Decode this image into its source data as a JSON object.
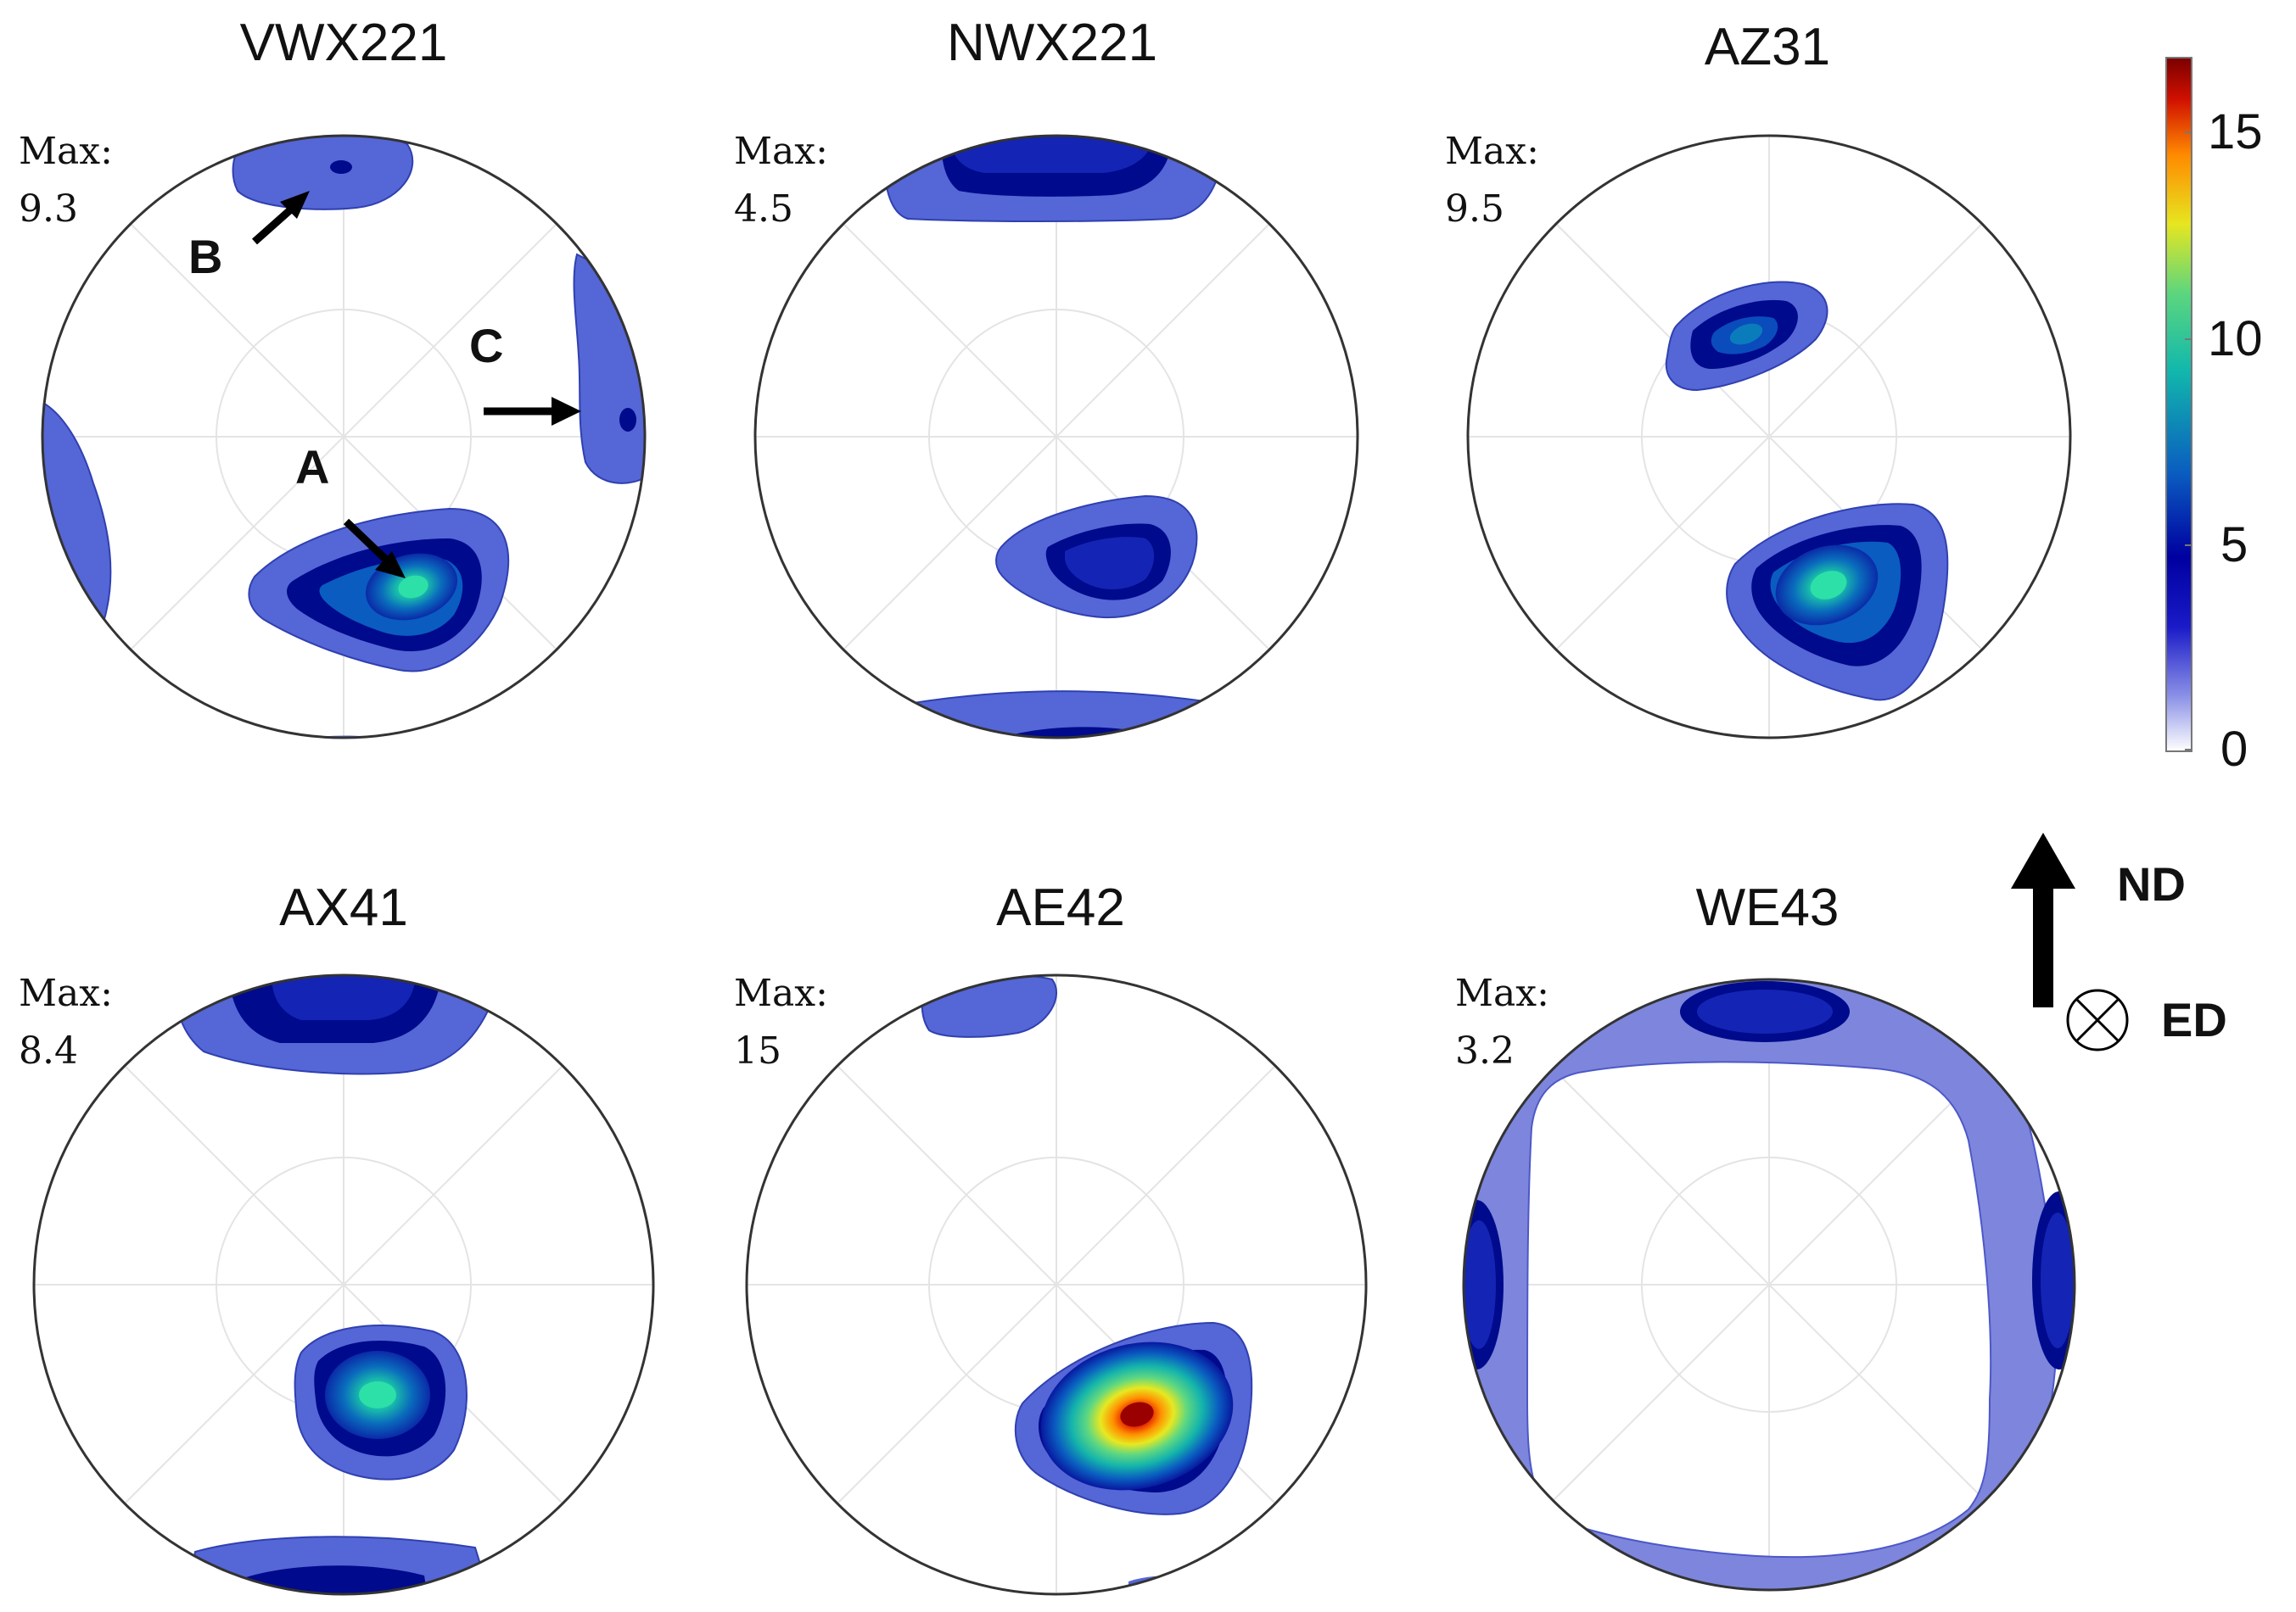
{
  "panels": [
    {
      "title": "VWX221",
      "max_label": "Max:",
      "max_value": "9.3"
    },
    {
      "title": "NWX221",
      "max_label": "Max:",
      "max_value": "4.5"
    },
    {
      "title": "AZ31",
      "max_label": "Max:",
      "max_value": "9.5"
    },
    {
      "title": "AX41",
      "max_label": "Max:",
      "max_value": "8.4"
    },
    {
      "title": "AE42",
      "max_label": "Max:",
      "max_value": "15"
    },
    {
      "title": "WE43",
      "max_label": "Max:",
      "max_value": "3.2"
    }
  ],
  "annotations": {
    "a": "A",
    "b": "B",
    "c": "C"
  },
  "colorbar": {
    "ticks": [
      "15",
      "10",
      "5",
      "0"
    ],
    "range": [
      0,
      17
    ],
    "colors": [
      "#ffffff",
      "#4b5bd6",
      "#00008c",
      "#0a6fbd",
      "#16c2a8",
      "#6fe27a",
      "#e6e61e",
      "#ff8c00",
      "#c80000",
      "#7a0000"
    ]
  },
  "axes": {
    "nd": "ND",
    "ed": "ED"
  },
  "colors": {
    "low": "#5566d6",
    "mid": "#1424b4",
    "deep": "#000a8c",
    "ring": "#7d86dc"
  }
}
